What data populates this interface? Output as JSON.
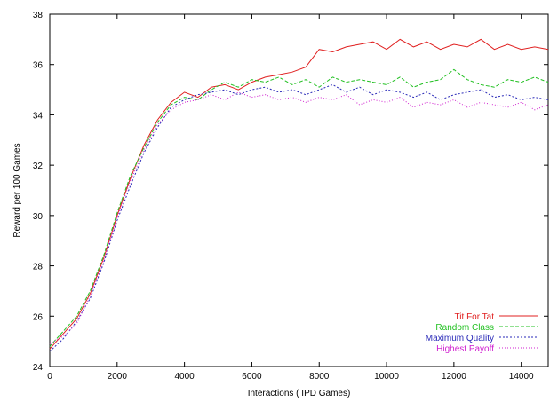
{
  "chart_data": {
    "type": "line",
    "xlabel": "Interactions ( IPD Games)",
    "ylabel": "Reward per 100 Games",
    "xlim": [
      0,
      14800
    ],
    "ylim": [
      24,
      38
    ],
    "x_ticks": [
      0,
      2000,
      4000,
      6000,
      8000,
      10000,
      12000,
      14000
    ],
    "y_ticks": [
      24,
      26,
      28,
      30,
      32,
      34,
      36,
      38
    ],
    "x_tick_labels": [
      "0",
      "2000",
      "4000",
      "6000",
      "8000",
      "10000",
      "12000",
      "14000"
    ],
    "y_tick_labels": [
      "24",
      "26",
      "28",
      "30",
      "32",
      "34",
      "36",
      "38"
    ],
    "legend_position": "bottom-right",
    "grid": false,
    "series": [
      {
        "name": "Tit For Tat",
        "color": "#e02020",
        "dash": "solid",
        "x": [
          0,
          400,
          800,
          1200,
          1600,
          2000,
          2400,
          2800,
          3200,
          3600,
          4000,
          4400,
          4800,
          5200,
          5600,
          6000,
          6400,
          6800,
          7200,
          7600,
          8000,
          8400,
          8800,
          9200,
          9600,
          10000,
          10400,
          10800,
          11200,
          11600,
          12000,
          12400,
          12800,
          13200,
          13600,
          14000,
          14400,
          14800
        ],
        "y": [
          24.7,
          25.3,
          25.9,
          26.9,
          28.3,
          30.0,
          31.5,
          32.8,
          33.8,
          34.5,
          34.9,
          34.7,
          35.1,
          35.2,
          35.0,
          35.3,
          35.5,
          35.6,
          35.7,
          35.9,
          36.6,
          36.5,
          36.7,
          36.8,
          36.9,
          36.6,
          37.0,
          36.7,
          36.9,
          36.6,
          36.8,
          36.7,
          37.0,
          36.6,
          36.8,
          36.6,
          36.7,
          36.6
        ]
      },
      {
        "name": "Random Class",
        "color": "#22c022",
        "dash": "4,2",
        "x": [
          0,
          400,
          800,
          1200,
          1600,
          2000,
          2400,
          2800,
          3200,
          3600,
          4000,
          4400,
          4800,
          5200,
          5600,
          6000,
          6400,
          6800,
          7200,
          7600,
          8000,
          8400,
          8800,
          9200,
          9600,
          10000,
          10400,
          10800,
          11200,
          11600,
          12000,
          12400,
          12800,
          13200,
          13600,
          14000,
          14400,
          14800
        ],
        "y": [
          24.8,
          25.4,
          26.0,
          27.0,
          28.4,
          30.1,
          31.6,
          32.7,
          33.7,
          34.4,
          34.7,
          34.6,
          35.0,
          35.3,
          35.1,
          35.4,
          35.3,
          35.5,
          35.2,
          35.4,
          35.1,
          35.5,
          35.3,
          35.4,
          35.3,
          35.2,
          35.5,
          35.1,
          35.3,
          35.4,
          35.8,
          35.4,
          35.2,
          35.1,
          35.4,
          35.3,
          35.5,
          35.3
        ]
      },
      {
        "name": "Maximum Quality",
        "color": "#2a2ab8",
        "dash": "2,2",
        "x": [
          0,
          400,
          800,
          1200,
          1600,
          2000,
          2400,
          2800,
          3200,
          3600,
          4000,
          4400,
          4800,
          5200,
          5600,
          6000,
          6400,
          6800,
          7200,
          7600,
          8000,
          8400,
          8800,
          9200,
          9600,
          10000,
          10400,
          10800,
          11200,
          11600,
          12000,
          12400,
          12800,
          13200,
          13600,
          14000,
          14400,
          14800
        ],
        "y": [
          24.6,
          25.1,
          25.8,
          26.7,
          28.1,
          29.8,
          31.2,
          32.5,
          33.5,
          34.3,
          34.6,
          34.8,
          34.9,
          35.0,
          34.8,
          35.0,
          35.1,
          34.9,
          35.0,
          34.8,
          35.0,
          35.2,
          34.9,
          35.1,
          34.8,
          35.0,
          34.9,
          34.7,
          34.9,
          34.6,
          34.8,
          34.9,
          35.0,
          34.7,
          34.8,
          34.6,
          34.7,
          34.6
        ]
      },
      {
        "name": "Highest Payoff",
        "color": "#d020d0",
        "dash": "1,2",
        "x": [
          0,
          400,
          800,
          1200,
          1600,
          2000,
          2400,
          2800,
          3200,
          3600,
          4000,
          4400,
          4800,
          5200,
          5600,
          6000,
          6400,
          6800,
          7200,
          7600,
          8000,
          8400,
          8800,
          9200,
          9600,
          10000,
          10400,
          10800,
          11200,
          11600,
          12000,
          12400,
          12800,
          13200,
          13600,
          14000,
          14400,
          14800
        ],
        "y": [
          24.9,
          25.2,
          25.7,
          26.8,
          28.2,
          29.9,
          31.4,
          32.6,
          33.6,
          34.2,
          34.5,
          34.6,
          34.8,
          34.6,
          34.9,
          34.7,
          34.8,
          34.6,
          34.7,
          34.5,
          34.7,
          34.6,
          34.8,
          34.4,
          34.6,
          34.5,
          34.7,
          34.3,
          34.5,
          34.4,
          34.6,
          34.3,
          34.5,
          34.4,
          34.3,
          34.5,
          34.2,
          34.4
        ]
      }
    ]
  }
}
